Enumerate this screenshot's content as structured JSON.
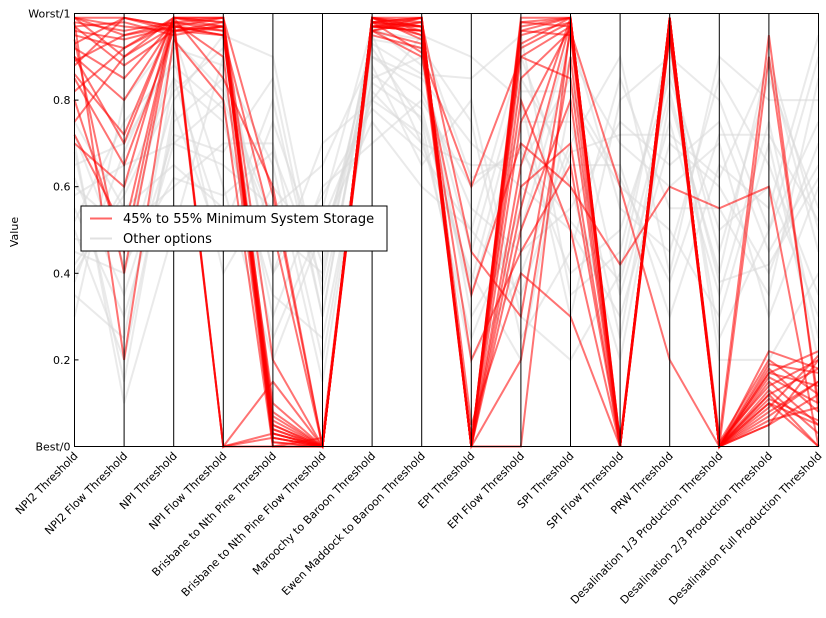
{
  "chart_data": {
    "type": "parallel-coordinates",
    "ylabel": "Value",
    "ylim": [
      0,
      1
    ],
    "y_ticks": [
      {
        "value": 0,
        "label": "Best/0"
      },
      {
        "value": 0.2,
        "label": "0.2"
      },
      {
        "value": 0.4,
        "label": "0.4"
      },
      {
        "value": 0.6,
        "label": "0.6"
      },
      {
        "value": 0.8,
        "label": "0.8"
      },
      {
        "value": 1,
        "label": "Worst/1"
      }
    ],
    "axes": [
      "NPI2 Threshold",
      "NPI2 Flow Threshold",
      "NPI Threshold",
      "NPI Flow Threshold",
      "Brisbane to Nth Pine Threshold",
      "Brisbane to Nth Pine Flow Threshold",
      "Maroochy to Baroon Threshold",
      "Ewen Maddock to Baroon Threshold",
      "EPI Threshold",
      "EPI Flow Threshold",
      "SPI Threshold",
      "SPI Flow Threshold",
      "PRW Threshold",
      "Desalination 1/3 Production Threshold",
      "Desalination 2/3 Production Threshold",
      "Desalination Full Production Threshold"
    ],
    "legend": {
      "placement": "center-left",
      "entries": [
        {
          "label": "45% to 55% Minimum System Storage",
          "color": "#ff0000"
        },
        {
          "label": "Other options",
          "color": "#d9d9d9"
        }
      ]
    },
    "series": [
      {
        "name": "45% to 55% Minimum System Storage",
        "color": "#ff0000",
        "values": [
          [
            0.95,
            0.92,
            0.98,
            0.97,
            0.05,
            0.0,
            0.98,
            0.97,
            0.0,
            0.96,
            0.95,
            0.0,
            0.98,
            0.0,
            0.15,
            0.05
          ],
          [
            0.9,
            0.7,
            0.99,
            0.98,
            0.02,
            0.0,
            0.99,
            0.95,
            0.0,
            0.95,
            0.98,
            0.01,
            0.97,
            0.0,
            0.12,
            0.18
          ],
          [
            0.99,
            0.95,
            0.97,
            0.0,
            0.03,
            0.0,
            0.97,
            0.99,
            0.0,
            0.6,
            0.7,
            0.0,
            0.99,
            0.0,
            0.1,
            0.0
          ],
          [
            0.85,
            0.65,
            0.96,
            0.95,
            0.1,
            0.0,
            0.95,
            0.92,
            0.02,
            0.8,
            0.5,
            0.0,
            0.96,
            0.0,
            0.9,
            0.1
          ],
          [
            0.8,
            0.45,
            0.99,
            0.85,
            0.6,
            0.0,
            0.98,
            0.99,
            0.0,
            0.2,
            0.9,
            0.0,
            0.95,
            0.0,
            0.05,
            0.2
          ],
          [
            0.97,
            0.98,
            0.95,
            0.97,
            0.04,
            0.0,
            0.99,
            0.96,
            0.0,
            0.97,
            0.99,
            0.0,
            0.98,
            0.01,
            0.2,
            0.12
          ],
          [
            0.75,
            0.9,
            0.99,
            0.99,
            0.2,
            0.0,
            0.96,
            0.9,
            0.35,
            0.7,
            0.6,
            0.42,
            0.6,
            0.55,
            0.6,
            0.0
          ],
          [
            0.98,
            0.2,
            0.94,
            0.8,
            0.0,
            0.02,
            0.97,
            0.98,
            0.0,
            0.0,
            0.98,
            0.0,
            0.99,
            0.0,
            0.08,
            0.15
          ],
          [
            0.92,
            0.85,
            0.98,
            0.0,
            0.15,
            0.0,
            0.99,
            0.97,
            0.05,
            0.4,
            0.3,
            0.0,
            0.97,
            0.02,
            0.95,
            0.08
          ],
          [
            0.88,
            0.99,
            0.97,
            0.95,
            0.5,
            0.0,
            0.98,
            0.99,
            0.0,
            0.9,
            0.97,
            0.0,
            0.99,
            0.0,
            0.17,
            0.22
          ],
          [
            0.7,
            0.6,
            0.99,
            0.98,
            0.01,
            0.0,
            0.97,
            0.96,
            0.0,
            0.98,
            0.99,
            0.01,
            0.98,
            0.0,
            0.1,
            0.05
          ],
          [
            0.99,
            0.99,
            0.96,
            0.97,
            0.03,
            0.0,
            0.99,
            0.94,
            0.0,
            0.5,
            0.8,
            0.0,
            0.96,
            0.0,
            0.22,
            0.18
          ],
          [
            0.94,
            0.4,
            0.98,
            0.99,
            0.08,
            0.0,
            0.96,
            0.98,
            0.45,
            0.3,
            0.96,
            0.6,
            0.2,
            0.0,
            0.12,
            0.0
          ],
          [
            0.82,
            0.92,
            0.99,
            0.0,
            0.0,
            0.0,
            0.98,
            0.97,
            0.0,
            0.99,
            0.99,
            0.0,
            0.99,
            0.0,
            0.05,
            0.12
          ],
          [
            0.96,
            0.94,
            0.97,
            0.99,
            0.58,
            0.0,
            0.97,
            0.96,
            0.0,
            0.75,
            0.97,
            0.0,
            0.98,
            0.0,
            0.18,
            0.08
          ],
          [
            0.9,
            0.8,
            0.98,
            0.96,
            0.02,
            0.0,
            0.99,
            0.99,
            0.0,
            0.65,
            0.99,
            0.01,
            0.97,
            0.01,
            0.14,
            0.2
          ],
          [
            0.99,
            0.97,
            0.96,
            0.98,
            0.06,
            0.0,
            0.98,
            0.95,
            0.0,
            0.92,
            0.98,
            0.0,
            0.96,
            0.0,
            0.07,
            0.15
          ],
          [
            0.86,
            0.72,
            0.99,
            0.97,
            0.04,
            0.0,
            0.96,
            0.93,
            0.2,
            0.45,
            0.65,
            0.0,
            0.99,
            0.0,
            0.16,
            0.1
          ],
          [
            0.98,
            0.96,
            0.98,
            0.9,
            0.01,
            0.0,
            0.99,
            0.98,
            0.0,
            0.85,
            0.96,
            0.0,
            0.98,
            0.0,
            0.13,
            0.03
          ],
          [
            0.93,
            0.99,
            0.97,
            0.95,
            0.07,
            0.0,
            0.97,
            0.97,
            0.0,
            0.96,
            0.99,
            0.0,
            0.97,
            0.0,
            0.19,
            0.17
          ],
          [
            0.72,
            0.5,
            0.99,
            0.99,
            0.03,
            0.0,
            0.98,
            0.91,
            0.6,
            0.9,
            0.85,
            0.0,
            0.99,
            0.0,
            0.11,
            0.06
          ],
          [
            0.97,
            0.88,
            0.96,
            0.97,
            0.05,
            0.0,
            0.99,
            0.97,
            0.0,
            0.98,
            0.97,
            0.0,
            0.95,
            0.0,
            0.09,
            0.21
          ],
          [
            0.89,
            0.95,
            0.98,
            0.0,
            0.02,
            0.0,
            0.96,
            0.99,
            0.0,
            0.55,
            0.98,
            0.0,
            0.99,
            0.0,
            0.17,
            0.14
          ],
          [
            0.99,
            0.9,
            0.97,
            0.96,
            0.0,
            0.0,
            0.97,
            0.96,
            0.0,
            0.93,
            0.99,
            0.0,
            0.98,
            0.0,
            0.06,
            0.09
          ]
        ]
      },
      {
        "name": "Other options",
        "color": "#d9d9d9",
        "values": [
          [
            0.55,
            0.3,
            0.7,
            0.8,
            0.5,
            0.4,
            0.9,
            0.85,
            0.7,
            0.6,
            0.5,
            0.3,
            0.7,
            0.6,
            0.4,
            0.7
          ],
          [
            0.4,
            0.6,
            0.85,
            0.5,
            0.8,
            0.3,
            0.95,
            0.7,
            0.4,
            0.2,
            0.8,
            0.6,
            0.5,
            0.3,
            0.7,
            0.2
          ],
          [
            0.7,
            0.1,
            0.5,
            0.9,
            0.4,
            0.7,
            0.8,
            0.95,
            0.9,
            0.8,
            0.3,
            0.8,
            0.9,
            0.8,
            0.5,
            0.9
          ],
          [
            0.3,
            0.8,
            0.95,
            0.6,
            0.2,
            0.5,
            0.75,
            0.6,
            0.5,
            0.9,
            0.6,
            0.2,
            0.8,
            0.4,
            0.9,
            0.5
          ],
          [
            0.6,
            0.5,
            0.6,
            0.7,
            0.7,
            0.2,
            0.85,
            0.9,
            0.3,
            0.5,
            0.9,
            0.7,
            0.6,
            0.7,
            0.3,
            0.6
          ],
          [
            0.5,
            0.2,
            0.75,
            0.85,
            0.3,
            0.6,
            0.7,
            0.8,
            0.6,
            0.7,
            0.4,
            0.5,
            0.85,
            0.5,
            0.6,
            0.3
          ],
          [
            0.65,
            0.7,
            0.9,
            0.4,
            0.6,
            0.45,
            0.92,
            0.75,
            0.2,
            0.4,
            0.7,
            0.9,
            0.4,
            0.9,
            0.8,
            0.8
          ],
          [
            0.45,
            0.4,
            0.8,
            0.95,
            0.9,
            0.35,
            0.88,
            0.65,
            0.8,
            0.3,
            0.2,
            0.4,
            0.95,
            0.2,
            0.2,
            0.4
          ],
          [
            0.75,
            0.55,
            0.65,
            0.55,
            0.45,
            0.55,
            0.97,
            0.88,
            0.45,
            0.85,
            0.65,
            0.65,
            0.3,
            0.65,
            0.55,
            0.95
          ],
          [
            0.35,
            0.25,
            0.85,
            0.75,
            0.35,
            0.25,
            0.82,
            0.7,
            0.65,
            0.65,
            0.85,
            0.35,
            0.75,
            0.35,
            0.75,
            0.25
          ],
          [
            0.58,
            0.65,
            0.7,
            0.65,
            0.55,
            0.65,
            0.9,
            0.82,
            0.55,
            0.45,
            0.55,
            0.75,
            0.65,
            0.75,
            0.45,
            0.65
          ],
          [
            0.48,
            0.45,
            0.92,
            0.88,
            0.65,
            0.15,
            0.86,
            0.78,
            0.35,
            0.75,
            0.75,
            0.25,
            0.88,
            0.45,
            0.85,
            0.55
          ],
          [
            0.68,
            0.15,
            0.78,
            0.45,
            0.75,
            0.42,
            0.94,
            0.92,
            0.75,
            0.25,
            0.45,
            0.85,
            0.55,
            0.55,
            0.35,
            0.85
          ],
          [
            0.52,
            0.75,
            0.88,
            0.78,
            0.25,
            0.52,
            0.8,
            0.72,
            0.25,
            0.55,
            0.95,
            0.55,
            0.45,
            0.85,
            0.65,
            0.35
          ],
          [
            0.62,
            0.35,
            0.72,
            0.68,
            0.85,
            0.3,
            0.93,
            0.86,
            0.85,
            0.95,
            0.35,
            0.45,
            0.92,
            0.25,
            0.5,
            0.75
          ],
          [
            0.42,
            0.58,
            0.82,
            0.92,
            0.4,
            0.58,
            0.78,
            0.68,
            0.5,
            0.35,
            0.68,
            0.72,
            0.72,
            0.62,
            0.88,
            0.45
          ],
          [
            0.72,
            0.42,
            0.62,
            0.58,
            0.68,
            0.38,
            0.96,
            0.94,
            0.62,
            0.68,
            0.52,
            0.38,
            0.82,
            0.38,
            0.42,
            0.62
          ],
          [
            0.38,
            0.68,
            0.94,
            0.82,
            0.52,
            0.48,
            0.84,
            0.76,
            0.38,
            0.82,
            0.82,
            0.62,
            0.38,
            0.72,
            0.72,
            0.52
          ]
        ]
      }
    ]
  }
}
